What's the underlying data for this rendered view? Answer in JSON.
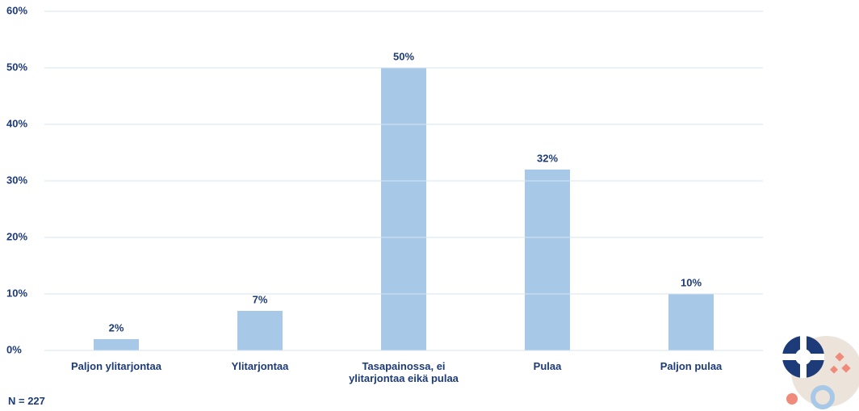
{
  "chart_data": {
    "type": "bar",
    "categories": [
      "Paljon ylitarjontaa",
      "Ylitarjontaa",
      "Tasapainossa, ei ylitarjontaa eikä pulaa",
      "Pulaa",
      "Paljon pulaa"
    ],
    "values": [
      2,
      7,
      50,
      32,
      10
    ],
    "value_labels": [
      "2%",
      "7%",
      "50%",
      "32%",
      "10%"
    ],
    "color": "#a8c8e8",
    "ylim": [
      0,
      60
    ],
    "yticks": [
      {
        "value": 0,
        "label": "0%"
      },
      {
        "value": 10,
        "label": "10%"
      },
      {
        "value": 20,
        "label": "20%"
      },
      {
        "value": 30,
        "label": "30%"
      },
      {
        "value": 40,
        "label": "40%"
      },
      {
        "value": 50,
        "label": "50%"
      },
      {
        "value": 60,
        "label": "60%"
      }
    ],
    "grid": true,
    "note": "N = 227"
  }
}
